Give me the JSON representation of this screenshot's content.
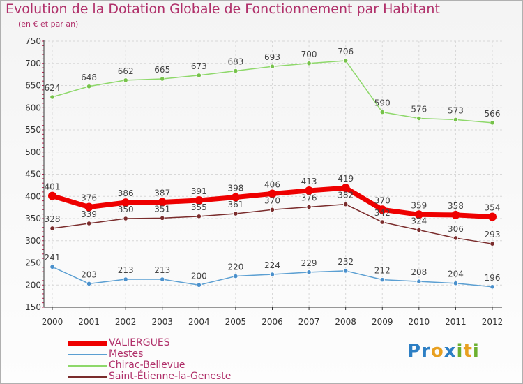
{
  "title": "Evolution de la Dotation Globale de Fonctionnement par Habitant",
  "subtitle": "(en € et par an)",
  "logo": {
    "text": "Proxiti",
    "colors": [
      "#2d7fc4",
      "#2d7fc4",
      "#e8a020",
      "#2d7fc4",
      "#6cb030",
      "#e8a020",
      "#6cb030"
    ]
  },
  "chart_data": {
    "type": "line",
    "title": "Evolution de la Dotation Globale de Fonctionnement par Habitant",
    "subtitle": "(en € et par an)",
    "xlabel": "",
    "ylabel": "",
    "x": [
      "2000",
      "2001",
      "2002",
      "2003",
      "2004",
      "2005",
      "2006",
      "2007",
      "2008",
      "2009",
      "2010",
      "2011",
      "2012"
    ],
    "ylim": [
      150,
      750
    ],
    "yticks": [
      150,
      200,
      250,
      300,
      350,
      400,
      450,
      500,
      550,
      600,
      650,
      700,
      750
    ],
    "grid": true,
    "legend_position": "bottom-left",
    "series": [
      {
        "name": "VALIERGUES",
        "color": "#ee0000",
        "values": [
          401,
          376,
          386,
          387,
          391,
          398,
          406,
          413,
          419,
          370,
          359,
          358,
          354
        ]
      },
      {
        "name": "Mestes",
        "color": "#5b9fd2",
        "values": [
          241,
          203,
          213,
          213,
          200,
          220,
          224,
          229,
          232,
          212,
          208,
          204,
          196
        ]
      },
      {
        "name": "Chirac-Bellevue",
        "color": "#8ed86a",
        "values": [
          624,
          648,
          662,
          665,
          673,
          683,
          693,
          700,
          706,
          590,
          576,
          573,
          566
        ]
      },
      {
        "name": "Saint-Étienne-la-Geneste",
        "color": "#7a2c2c",
        "values": [
          328,
          339,
          350,
          351,
          355,
          361,
          370,
          376,
          382,
          342,
          324,
          306,
          293
        ]
      }
    ]
  }
}
